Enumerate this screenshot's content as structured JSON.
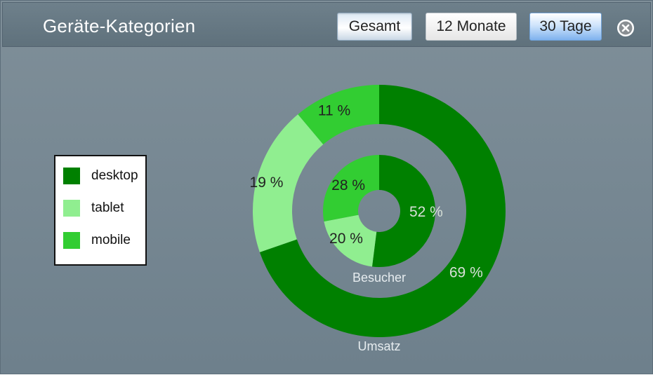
{
  "header": {
    "title": "Geräte-Kategorien",
    "buttons": [
      "Gesamt",
      "12 Monate",
      "30 Tage"
    ],
    "selected_button": "30 Tage",
    "close_icon": "close-circle-icon"
  },
  "colors": {
    "desktop": "#008000",
    "tablet": "#90ee90",
    "mobile": "#32cd32"
  },
  "chart_data": {
    "type": "pie",
    "legend": {
      "placement": "left",
      "entries": [
        "desktop",
        "tablet",
        "mobile"
      ]
    },
    "categories": [
      "desktop",
      "tablet",
      "mobile"
    ],
    "series": [
      {
        "name": "Umsatz",
        "values": [
          69,
          19,
          11
        ],
        "labels": [
          "69 %",
          "19 %",
          "11 %"
        ]
      },
      {
        "name": "Besucher",
        "values": [
          52,
          20,
          28
        ],
        "labels": [
          "52 %",
          "20 %",
          "28 %"
        ]
      }
    ]
  }
}
